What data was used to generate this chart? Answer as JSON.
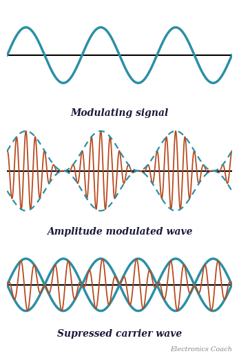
{
  "title1": "Modulating signal",
  "title2": "Amplitude modulated wave",
  "title3": "Supressed carrier wave",
  "watermark": "Electronics Coach",
  "bg_color": "#ffffff",
  "teal_color": "#2a8fa5",
  "orange_color": "#b84a1e",
  "text_color": "#1a1a3a",
  "fig_width": 3.47,
  "fig_height": 5.16,
  "dpi": 100
}
